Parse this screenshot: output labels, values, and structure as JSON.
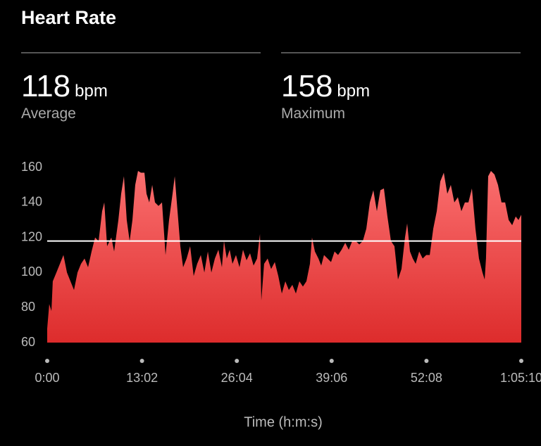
{
  "header": {
    "title": "Heart Rate"
  },
  "stats": [
    {
      "value": 118,
      "unit": "bpm",
      "label": "Average"
    },
    {
      "value": 158,
      "unit": "bpm",
      "label": "Maximum"
    }
  ],
  "chart_data": {
    "type": "area",
    "x_label": "Time (h:m:s)",
    "color": "#f05050",
    "x": [
      0,
      17,
      35,
      46,
      76,
      105,
      134,
      163,
      192,
      221,
      250,
      279,
      308,
      337,
      366,
      395,
      424,
      453,
      471,
      494,
      529,
      552,
      587,
      610,
      633,
      656,
      680,
      703,
      726,
      749,
      773,
      802,
      819,
      842,
      866,
      889,
      918,
      947,
      976,
      1005,
      1034,
      1052,
      1075,
      1098,
      1121,
      1150,
      1179,
      1208,
      1237,
      1267,
      1296,
      1325,
      1354,
      1383,
      1412,
      1441,
      1458,
      1481,
      1505,
      1528,
      1557,
      1586,
      1615,
      1644,
      1673,
      1702,
      1731,
      1755,
      1766,
      1789,
      1818,
      1847,
      1877,
      1906,
      1935,
      1964,
      1993,
      2022,
      2051,
      2080,
      2109,
      2138,
      2167,
      2184,
      2208,
      2237,
      2260,
      2283,
      2312,
      2341,
      2370,
      2399,
      2428,
      2458,
      2487,
      2516,
      2545,
      2574,
      2603,
      2632,
      2661,
      2690,
      2719,
      2748,
      2777,
      2806,
      2835,
      2864,
      2893,
      2922,
      2951,
      2969,
      2992,
      3015,
      3039,
      3068,
      3097,
      3126,
      3155,
      3184,
      3213,
      3242,
      3271,
      3300,
      3329,
      3358,
      3387,
      3416,
      3445,
      3474,
      3503,
      3532,
      3561,
      3590,
      3608,
      3619,
      3637,
      3660,
      3689,
      3718,
      3747,
      3777,
      3806,
      3835,
      3864,
      3887,
      3910
    ],
    "values": [
      68,
      82,
      78,
      95,
      100,
      105,
      110,
      100,
      95,
      90,
      100,
      105,
      108,
      103,
      112,
      120,
      118,
      135,
      140,
      115,
      120,
      112,
      130,
      145,
      155,
      130,
      118,
      130,
      150,
      158,
      157,
      157,
      145,
      140,
      150,
      140,
      138,
      140,
      110,
      130,
      145,
      155,
      135,
      115,
      103,
      108,
      115,
      98,
      105,
      110,
      100,
      112,
      100,
      108,
      113,
      103,
      118,
      108,
      113,
      105,
      110,
      103,
      113,
      107,
      111,
      104,
      108,
      122,
      84,
      105,
      108,
      102,
      106,
      98,
      88,
      95,
      90,
      93,
      88,
      95,
      92,
      95,
      105,
      120,
      112,
      108,
      104,
      110,
      108,
      106,
      112,
      110,
      113,
      117,
      113,
      118,
      118,
      116,
      118,
      125,
      140,
      147,
      135,
      147,
      148,
      132,
      118,
      115,
      96,
      102,
      120,
      128,
      112,
      108,
      105,
      112,
      108,
      110,
      110,
      125,
      135,
      152,
      157,
      145,
      150,
      140,
      143,
      135,
      140,
      140,
      148,
      125,
      108,
      100,
      96,
      108,
      155,
      158,
      156,
      150,
      140,
      140,
      130,
      127,
      132,
      130,
      133
    ],
    "xlim": [
      0,
      3910
    ],
    "xticks": [
      {
        "value": 0,
        "label": "0:00"
      },
      {
        "value": 782,
        "label": "13:02"
      },
      {
        "value": 1564,
        "label": "26:04"
      },
      {
        "value": 2346,
        "label": "39:06"
      },
      {
        "value": 3128,
        "label": "52:08"
      },
      {
        "value": 3910,
        "label": "1:05:10"
      }
    ],
    "ylim": [
      60,
      160
    ],
    "yticks": [
      60,
      80,
      100,
      120,
      140,
      160
    ]
  }
}
